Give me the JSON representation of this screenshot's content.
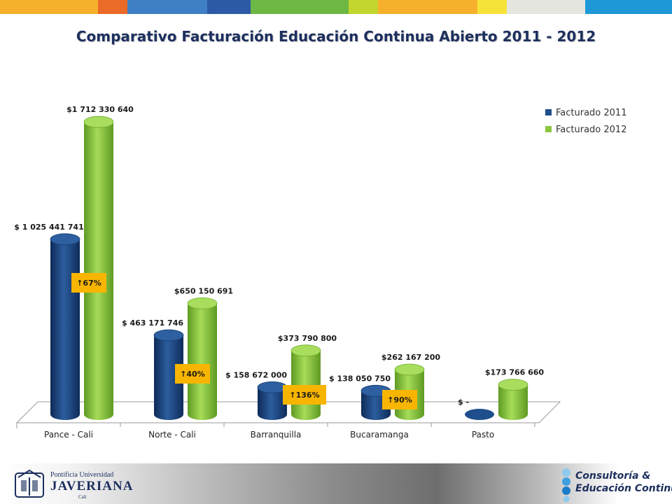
{
  "page": {
    "title": "Comparativo Facturación  Educación Continua Abierto 2011 - 2012",
    "stripe_colors": [
      "#f7b02b",
      "#ea6a27",
      "#3f7fc3",
      "#2d5aa6",
      "#6db744",
      "#c2d62f",
      "#f7b02b",
      "#f5e33a",
      "#e5e5e0",
      "#1f98d7"
    ]
  },
  "chart_data": {
    "type": "bar",
    "style": "3d-cylinder",
    "title": "Comparativo Facturación  Educación Continua Abierto 2011 - 2012",
    "categories": [
      "Pance - Cali",
      "Norte - Cali",
      "Barranquilla",
      "Bucaramanga",
      "Pasto"
    ],
    "series": [
      {
        "name": "Facturado 2011",
        "color": "#1f4e8c",
        "values": [
          1025441741,
          463171746,
          158672000,
          138050750,
          0
        ],
        "labels": [
          "$ 1 025 441 741",
          "$ 463 171 746",
          "$ 158 672 000",
          "$ 138 050 750",
          "$ -"
        ]
      },
      {
        "name": "Facturado 2012",
        "color": "#8cc63f",
        "values": [
          1712330640,
          650150691,
          373790800,
          262167200,
          173766660
        ],
        "labels": [
          "$1 712 330 640",
          "$650 150 691",
          "$373 790 800",
          "$262 167 200",
          "$173 766 660"
        ]
      }
    ],
    "growth_badges": [
      "↑67%",
      "↑40%",
      "↑136%",
      "↑90%"
    ],
    "ylim": [
      0,
      1750000000
    ],
    "grid": false,
    "legend_position": "top-right"
  },
  "footer": {
    "university_line1": "Pontificia Universidad",
    "university_line2": "JAVERIANA",
    "university_line3": "Cali",
    "unit_line1": "Consultoría &",
    "unit_line2": "Educación Continua"
  }
}
